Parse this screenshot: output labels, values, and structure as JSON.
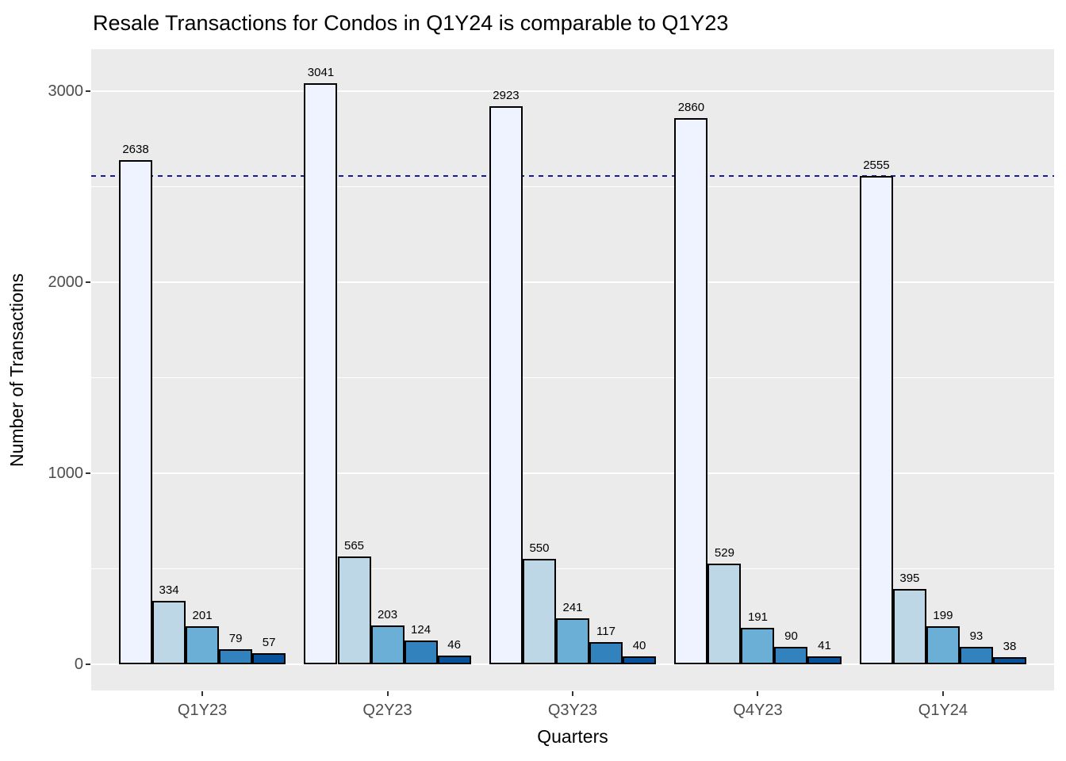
{
  "chart_data": {
    "type": "bar",
    "title": "Resale Transactions for Condos in Q1Y24 is comparable to Q1Y23",
    "xlabel": "Quarters",
    "ylabel": "Number of Transactions",
    "categories": [
      "Q1Y23",
      "Q2Y23",
      "Q3Y23",
      "Q4Y23",
      "Q1Y24"
    ],
    "series": [
      {
        "name": "series-1",
        "color": "#EFF3FF",
        "values": [
          2638,
          3041,
          2923,
          2860,
          2555
        ]
      },
      {
        "name": "series-2",
        "color": "#BDD7E7",
        "values": [
          334,
          565,
          550,
          529,
          395
        ]
      },
      {
        "name": "series-3",
        "color": "#6BAED6",
        "values": [
          201,
          203,
          241,
          191,
          199
        ]
      },
      {
        "name": "series-4",
        "color": "#3182BD",
        "values": [
          79,
          124,
          117,
          90,
          93
        ]
      },
      {
        "name": "series-5",
        "color": "#08519C",
        "values": [
          57,
          46,
          40,
          41,
          38
        ]
      }
    ],
    "bar_value_labels_shown": true,
    "ylim": [
      0,
      3220
    ],
    "yticks": [
      0,
      1000,
      2000,
      3000
    ],
    "minor_yticks": [
      500,
      1500,
      2500
    ],
    "reference_line": {
      "value": 2555,
      "color": "#1A1A9C",
      "style": "dashed"
    },
    "grid": "white-on-gray",
    "legend_position": "none",
    "panel_background": "#EBEBEB",
    "gridline_color": "#FFFFFF",
    "axis_text_color": "#4D4D4D",
    "bar_outline_color": "#000000"
  }
}
